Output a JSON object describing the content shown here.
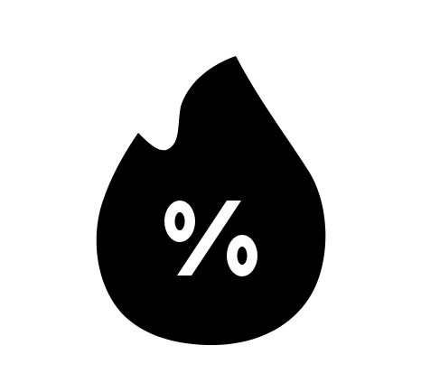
{
  "icon": {
    "name": "flame-percent-icon",
    "symbol": "%",
    "fill_color": "#000000",
    "symbol_color": "#ffffff",
    "background_color": "#ffffff"
  }
}
